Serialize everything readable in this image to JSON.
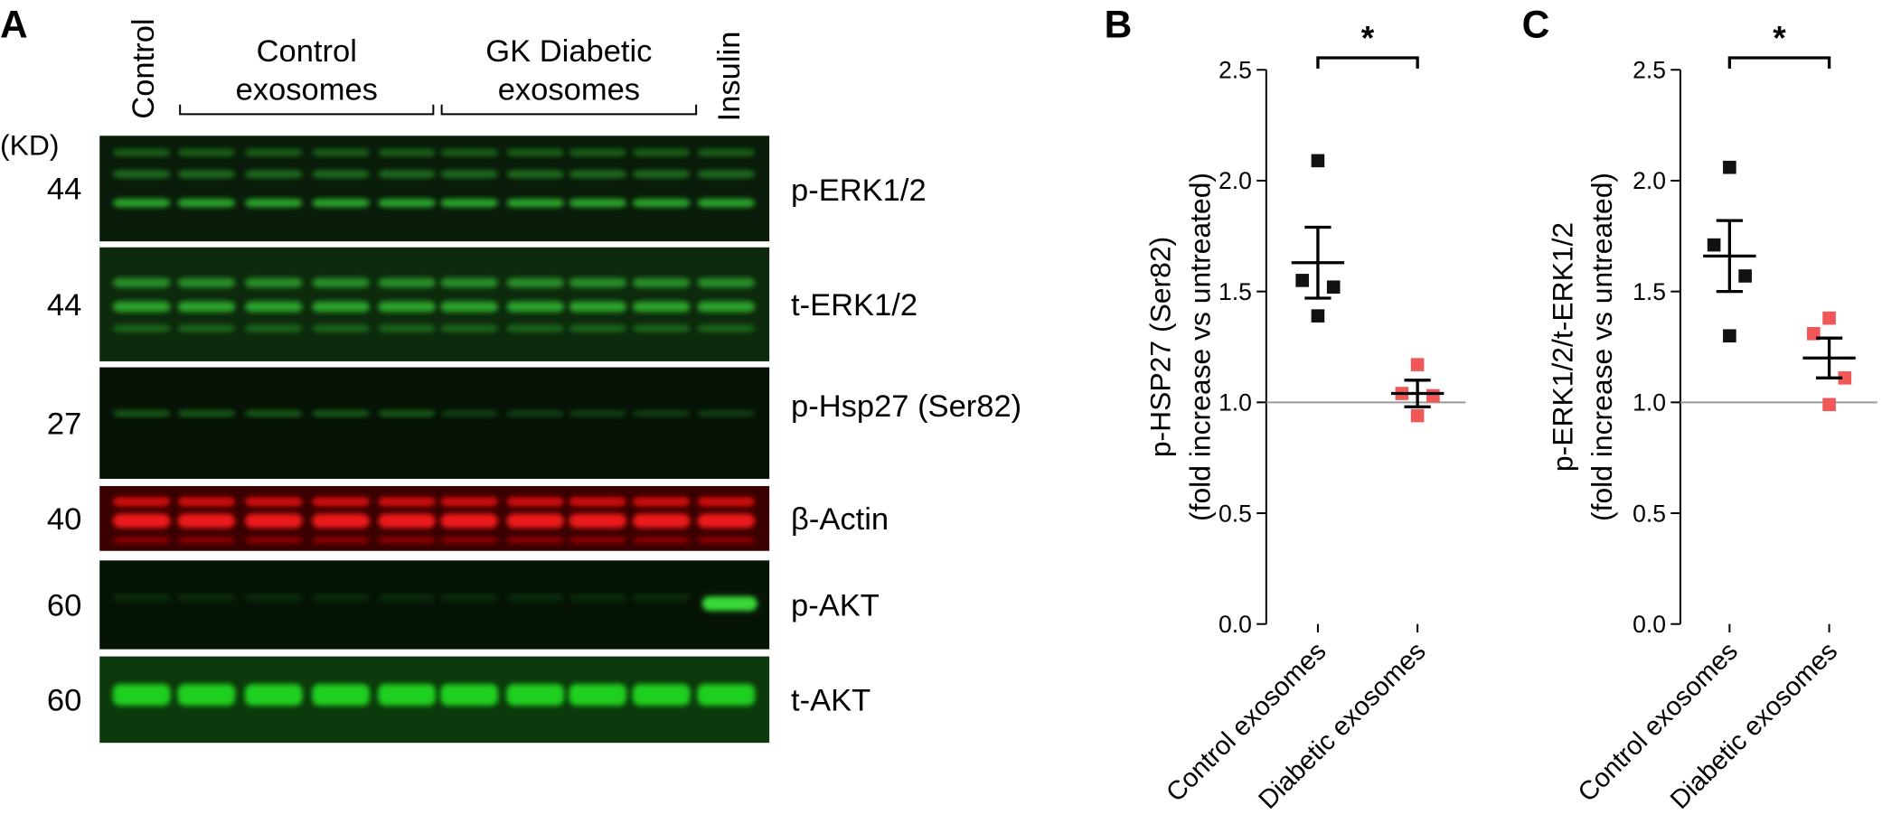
{
  "blot": {
    "panel": "A",
    "unit": "(KD)",
    "lanes": {
      "control": "Control",
      "insulin": "Insulin"
    },
    "groups": [
      [
        "Control",
        "exosomes"
      ],
      [
        "GK Diabetic",
        "exosomes"
      ]
    ],
    "rows": [
      {
        "kd": 44,
        "label": "p-ERK1/2"
      },
      {
        "kd": 44,
        "label": "t-ERK1/2"
      },
      {
        "kd": 27,
        "label": "p-Hsp27 (Ser82)"
      },
      {
        "kd": 40,
        "label": "β-Actin"
      },
      {
        "kd": 60,
        "label": "p-AKT"
      },
      {
        "kd": 60,
        "label": "t-AKT"
      }
    ]
  },
  "chart_data": [
    {
      "type": "scatter",
      "panel": "B",
      "significance": "*",
      "ylabel": [
        "p-HSP27 (Ser82)",
        "(fold increase vs untreated)"
      ],
      "categories": [
        "Control exosomes",
        "Diabetic exosomes"
      ],
      "series": [
        {
          "color": "#111111",
          "values": [
            2.09,
            1.55,
            1.52,
            1.39
          ],
          "mean": 1.63,
          "sem": 0.16
        },
        {
          "color": "#f25757",
          "values": [
            1.17,
            1.04,
            1.03,
            0.94
          ],
          "mean": 1.04,
          "sem": 0.06
        }
      ],
      "reference": 1,
      "ylim": [
        0,
        2.5
      ],
      "yticks": [
        {
          "value": 0,
          "label": "0.0"
        },
        0.5,
        {
          "value": 1,
          "label": "1.0"
        },
        1.5,
        {
          "value": 2,
          "label": "2.0"
        },
        2.5
      ]
    },
    {
      "type": "scatter",
      "panel": "C",
      "significance": "*",
      "ylabel": [
        "p-ERK1/2/t-ERK1/2",
        "(fold increase vs untreated)"
      ],
      "categories": [
        "Control exosomes",
        "Diabetic exosomes"
      ],
      "series": [
        {
          "color": "#111111",
          "values": [
            2.06,
            1.71,
            1.57,
            1.3
          ],
          "mean": 1.66,
          "sem": 0.16
        },
        {
          "color": "#f25757",
          "values": [
            1.38,
            1.31,
            1.11,
            0.99
          ],
          "mean": 1.2,
          "sem": 0.09
        }
      ],
      "reference": 1,
      "ylim": [
        0,
        2.5
      ],
      "yticks": [
        {
          "value": 0,
          "label": "0.0"
        },
        0.5,
        {
          "value": 1,
          "label": "1.0"
        },
        1.5,
        {
          "value": 2,
          "label": "2.0"
        },
        2.5
      ]
    }
  ]
}
